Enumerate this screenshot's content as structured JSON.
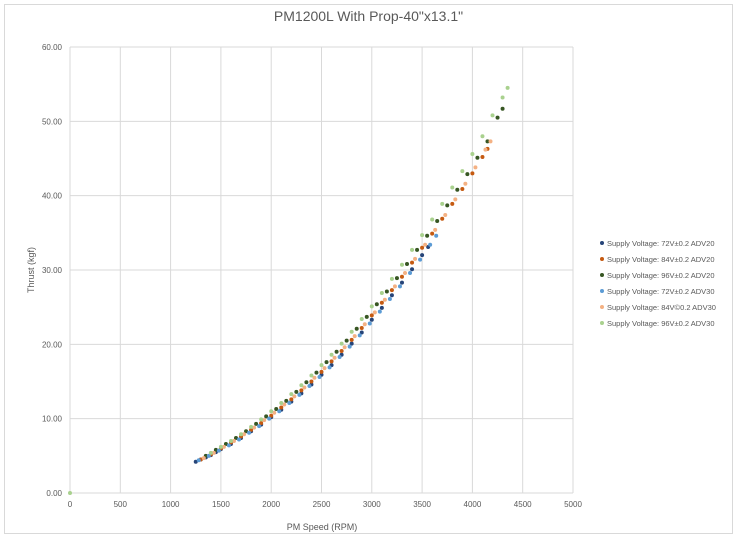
{
  "colors": {
    "background": "#ffffff",
    "gridline": "#d9d9d9",
    "text": "#595959"
  },
  "chart_data": {
    "type": "scatter",
    "title": "PM1200L With Prop-40\"x13.1\"",
    "xlabel": "PM Speed (RPM)",
    "ylabel": "Thrust (kgf)",
    "xlim": [
      0,
      5000
    ],
    "ylim": [
      0,
      60
    ],
    "xticks": [
      "0",
      "500",
      "1000",
      "1500",
      "2000",
      "2500",
      "3000",
      "3500",
      "4000",
      "4500",
      "5000"
    ],
    "yticks": [
      "0.00",
      "10.00",
      "20.00",
      "30.00",
      "40.00",
      "50.00",
      "60.00"
    ],
    "grid": true,
    "legend_position": "right",
    "series": [
      {
        "name": "Supply Voltage: 72V±0.2  ADV20",
        "color": "#264478",
        "points": [
          [
            1250,
            4.2
          ],
          [
            1300,
            4.5
          ],
          [
            1350,
            4.8
          ],
          [
            1400,
            5.1
          ],
          [
            1450,
            5.5
          ],
          [
            1500,
            5.9
          ],
          [
            1600,
            6.6
          ],
          [
            1700,
            7.4
          ],
          [
            1800,
            8.3
          ],
          [
            1900,
            9.2
          ],
          [
            2000,
            10.2
          ],
          [
            2100,
            11.2
          ],
          [
            2200,
            12.3
          ],
          [
            2300,
            13.4
          ],
          [
            2400,
            14.6
          ],
          [
            2500,
            15.9
          ],
          [
            2600,
            17.2
          ],
          [
            2700,
            18.6
          ],
          [
            2800,
            20.1
          ],
          [
            2900,
            21.6
          ],
          [
            3000,
            23.3
          ],
          [
            3100,
            24.9
          ],
          [
            3200,
            26.6
          ],
          [
            3300,
            28.3
          ],
          [
            3400,
            30.1
          ],
          [
            3500,
            32.0
          ],
          [
            3560,
            33.1
          ]
        ]
      },
      {
        "name": "Supply Voltage: 84V±0.2  ADV20",
        "color": "#c55a11",
        "points": [
          [
            1300,
            4.5
          ],
          [
            1400,
            5.2
          ],
          [
            1500,
            6.0
          ],
          [
            1600,
            6.8
          ],
          [
            1700,
            7.6
          ],
          [
            1800,
            8.5
          ],
          [
            1900,
            9.4
          ],
          [
            2000,
            10.4
          ],
          [
            2100,
            11.5
          ],
          [
            2200,
            12.6
          ],
          [
            2300,
            13.8
          ],
          [
            2400,
            15.0
          ],
          [
            2500,
            16.3
          ],
          [
            2600,
            17.7
          ],
          [
            2700,
            19.1
          ],
          [
            2800,
            20.6
          ],
          [
            2900,
            22.2
          ],
          [
            3000,
            23.9
          ],
          [
            3100,
            25.6
          ],
          [
            3200,
            27.3
          ],
          [
            3300,
            29.1
          ],
          [
            3400,
            31.0
          ],
          [
            3500,
            33.0
          ],
          [
            3600,
            34.9
          ],
          [
            3700,
            36.9
          ],
          [
            3800,
            38.9
          ],
          [
            3900,
            40.9
          ],
          [
            4000,
            43.0
          ],
          [
            4100,
            45.2
          ],
          [
            4150,
            46.3
          ]
        ]
      },
      {
        "name": "Supply Voltage: 96V±0.2  ADV20",
        "color": "#375623",
        "points": [
          [
            1350,
            5.0
          ],
          [
            1450,
            5.8
          ],
          [
            1550,
            6.6
          ],
          [
            1650,
            7.4
          ],
          [
            1750,
            8.3
          ],
          [
            1850,
            9.3
          ],
          [
            1950,
            10.3
          ],
          [
            2050,
            11.3
          ],
          [
            2150,
            12.4
          ],
          [
            2250,
            13.6
          ],
          [
            2350,
            14.9
          ],
          [
            2450,
            16.2
          ],
          [
            2550,
            17.6
          ],
          [
            2650,
            19.0
          ],
          [
            2750,
            20.5
          ],
          [
            2850,
            22.1
          ],
          [
            2950,
            23.7
          ],
          [
            3050,
            25.4
          ],
          [
            3150,
            27.1
          ],
          [
            3250,
            28.9
          ],
          [
            3350,
            30.8
          ],
          [
            3450,
            32.7
          ],
          [
            3550,
            34.6
          ],
          [
            3650,
            36.6
          ],
          [
            3750,
            38.7
          ],
          [
            3850,
            40.8
          ],
          [
            3950,
            42.9
          ],
          [
            4050,
            45.1
          ],
          [
            4150,
            47.3
          ],
          [
            4250,
            50.5
          ],
          [
            4300,
            51.7
          ]
        ]
      },
      {
        "name": "Supply Voltage: 72V±0.2  ADV30",
        "color": "#5b9bd5",
        "points": [
          [
            1280,
            4.4
          ],
          [
            1380,
            5.0
          ],
          [
            1480,
            5.7
          ],
          [
            1580,
            6.4
          ],
          [
            1680,
            7.2
          ],
          [
            1780,
            8.1
          ],
          [
            1880,
            9.0
          ],
          [
            1980,
            10.0
          ],
          [
            2080,
            11.0
          ],
          [
            2180,
            12.1
          ],
          [
            2280,
            13.2
          ],
          [
            2380,
            14.4
          ],
          [
            2480,
            15.6
          ],
          [
            2580,
            16.9
          ],
          [
            2680,
            18.3
          ],
          [
            2780,
            19.7
          ],
          [
            2880,
            21.2
          ],
          [
            2980,
            22.8
          ],
          [
            3080,
            24.4
          ],
          [
            3180,
            26.1
          ],
          [
            3280,
            27.8
          ],
          [
            3380,
            29.6
          ],
          [
            3480,
            31.4
          ],
          [
            3580,
            33.4
          ],
          [
            3640,
            34.6
          ]
        ]
      },
      {
        "name": "Supply Voltage: 84V©0.2  ADV30",
        "color": "#f4b183",
        "points": [
          [
            1330,
            4.7
          ],
          [
            1430,
            5.4
          ],
          [
            1530,
            6.2
          ],
          [
            1630,
            7.0
          ],
          [
            1730,
            7.9
          ],
          [
            1830,
            8.8
          ],
          [
            1930,
            9.8
          ],
          [
            2030,
            10.8
          ],
          [
            2130,
            11.9
          ],
          [
            2230,
            13.0
          ],
          [
            2330,
            14.2
          ],
          [
            2430,
            15.5
          ],
          [
            2530,
            16.8
          ],
          [
            2630,
            18.2
          ],
          [
            2730,
            19.6
          ],
          [
            2830,
            21.1
          ],
          [
            2930,
            22.7
          ],
          [
            3030,
            24.3
          ],
          [
            3130,
            26.0
          ],
          [
            3230,
            27.8
          ],
          [
            3330,
            29.6
          ],
          [
            3430,
            31.5
          ],
          [
            3530,
            33.4
          ],
          [
            3630,
            35.4
          ],
          [
            3730,
            37.4
          ],
          [
            3830,
            39.5
          ],
          [
            3930,
            41.6
          ],
          [
            4030,
            43.8
          ],
          [
            4130,
            46.2
          ],
          [
            4180,
            47.3
          ]
        ]
      },
      {
        "name": "Supply Voltage: 96V±0.2  ADV30",
        "color": "#a9d18e",
        "points": [
          [
            0,
            0.0
          ],
          [
            1400,
            5.4
          ],
          [
            1500,
            6.2
          ],
          [
            1600,
            7.0
          ],
          [
            1700,
            7.9
          ],
          [
            1800,
            8.9
          ],
          [
            1900,
            9.9
          ],
          [
            2000,
            11.0
          ],
          [
            2100,
            12.1
          ],
          [
            2200,
            13.3
          ],
          [
            2300,
            14.5
          ],
          [
            2400,
            15.8
          ],
          [
            2500,
            17.2
          ],
          [
            2600,
            18.6
          ],
          [
            2700,
            20.1
          ],
          [
            2800,
            21.7
          ],
          [
            2900,
            23.4
          ],
          [
            3000,
            25.1
          ],
          [
            3100,
            26.9
          ],
          [
            3200,
            28.8
          ],
          [
            3300,
            30.7
          ],
          [
            3400,
            32.7
          ],
          [
            3500,
            34.7
          ],
          [
            3600,
            36.8
          ],
          [
            3700,
            38.9
          ],
          [
            3800,
            41.1
          ],
          [
            3900,
            43.3
          ],
          [
            4000,
            45.6
          ],
          [
            4100,
            48.0
          ],
          [
            4200,
            50.8
          ],
          [
            4300,
            53.2
          ],
          [
            4350,
            54.5
          ]
        ]
      }
    ]
  }
}
